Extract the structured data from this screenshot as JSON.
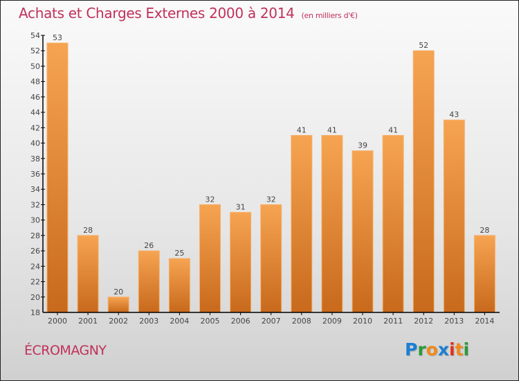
{
  "header": {
    "title": "Achats et Charges Externes 2000 à 2014",
    "unit": "(en milliers d'€)"
  },
  "footer": {
    "place": "ÉCROMAGNY",
    "logo": {
      "letters": [
        {
          "char": "P",
          "color": "#1a7fd4"
        },
        {
          "char": "r",
          "color": "#2a9a3a"
        },
        {
          "char": "o",
          "color": "#f08a1c"
        },
        {
          "char": "x",
          "color": "#1a7fd4"
        },
        {
          "char": "i",
          "color": "#e03020"
        },
        {
          "char": "t",
          "color": "#f08a1c"
        },
        {
          "char": "i",
          "color": "#2a9a3a"
        }
      ]
    }
  },
  "colors": {
    "title": "#c0305a",
    "bar_top": "#f6a452",
    "bar_bottom": "#c8691c",
    "label": "#444444"
  },
  "chart_data": {
    "type": "bar",
    "title": "Achats et Charges Externes 2000 à 2014",
    "subtitle": "(en milliers d'€)",
    "xlabel": "",
    "ylabel": "",
    "categories": [
      "2000",
      "2001",
      "2002",
      "2003",
      "2004",
      "2005",
      "2006",
      "2007",
      "2008",
      "2009",
      "2010",
      "2011",
      "2012",
      "2013",
      "2014"
    ],
    "values": [
      53,
      28,
      20,
      26,
      25,
      32,
      31,
      32,
      41,
      41,
      39,
      41,
      52,
      43,
      28
    ],
    "ylim": [
      18,
      54
    ],
    "yticks": [
      18,
      20,
      22,
      24,
      26,
      28,
      30,
      32,
      34,
      36,
      38,
      40,
      42,
      44,
      46,
      48,
      50,
      52,
      54
    ],
    "grid": false,
    "legend": "none"
  }
}
